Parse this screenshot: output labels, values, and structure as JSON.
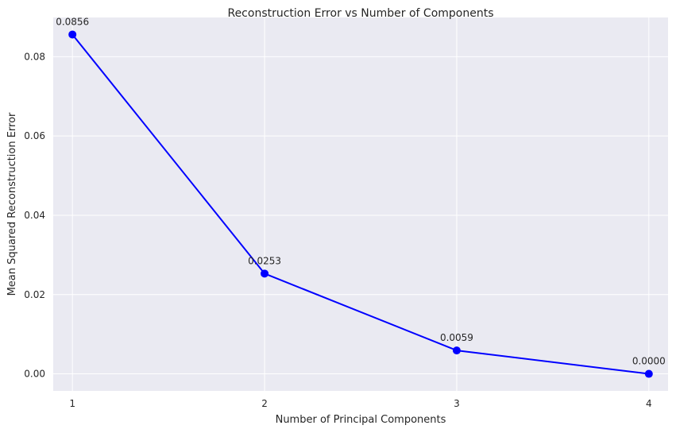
{
  "chart_data": {
    "type": "line",
    "title": "Reconstruction Error vs Number of Components",
    "xlabel": "Number of Principal Components",
    "ylabel": "Mean Squared Reconstruction Error",
    "x": [
      1,
      2,
      3,
      4
    ],
    "x_tick_labels": [
      "1",
      "2",
      "3",
      "4"
    ],
    "xlim": [
      0.9,
      4.1
    ],
    "ylim": [
      -0.0043,
      0.0899
    ],
    "y_ticks": [
      0.0,
      0.02,
      0.04,
      0.06,
      0.08
    ],
    "y_tick_labels": [
      "0.00",
      "0.02",
      "0.04",
      "0.06",
      "0.08"
    ],
    "series": [
      {
        "values": [
          0.0856,
          0.0253,
          0.0059,
          0.0
        ],
        "data_labels": [
          "0.0856",
          "0.0253",
          "0.0059",
          "0.0000"
        ],
        "color": "#0000ff",
        "marker": "circle"
      }
    ],
    "grid": true,
    "background_color": "#eaeaf2",
    "grid_color": "#ffffff"
  }
}
